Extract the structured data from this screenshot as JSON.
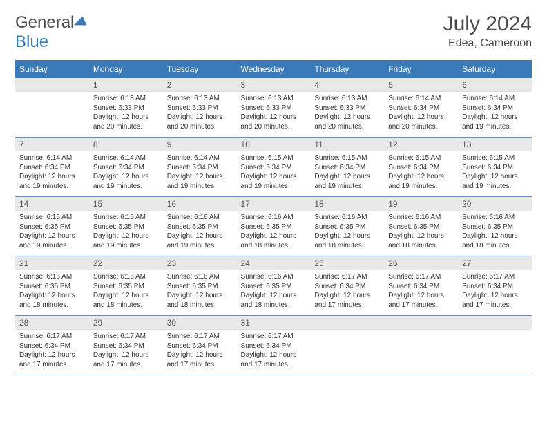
{
  "logo": {
    "text_gray": "General",
    "text_blue": "Blue"
  },
  "title": "July 2024",
  "location": "Edea, Cameroon",
  "colors": {
    "header_bg": "#3a7ab8",
    "header_text": "#ffffff",
    "daynum_bg": "#e8e8e8",
    "border": "#6b8db3",
    "logo_gray": "#4a4a4a",
    "logo_blue": "#3a7ab8"
  },
  "weekdays": [
    "Sunday",
    "Monday",
    "Tuesday",
    "Wednesday",
    "Thursday",
    "Friday",
    "Saturday"
  ],
  "start_offset": 1,
  "days": [
    {
      "n": 1,
      "sr": "6:13 AM",
      "ss": "6:33 PM",
      "dl": "12 hours and 20 minutes."
    },
    {
      "n": 2,
      "sr": "6:13 AM",
      "ss": "6:33 PM",
      "dl": "12 hours and 20 minutes."
    },
    {
      "n": 3,
      "sr": "6:13 AM",
      "ss": "6:33 PM",
      "dl": "12 hours and 20 minutes."
    },
    {
      "n": 4,
      "sr": "6:13 AM",
      "ss": "6:33 PM",
      "dl": "12 hours and 20 minutes."
    },
    {
      "n": 5,
      "sr": "6:14 AM",
      "ss": "6:34 PM",
      "dl": "12 hours and 20 minutes."
    },
    {
      "n": 6,
      "sr": "6:14 AM",
      "ss": "6:34 PM",
      "dl": "12 hours and 19 minutes."
    },
    {
      "n": 7,
      "sr": "6:14 AM",
      "ss": "6:34 PM",
      "dl": "12 hours and 19 minutes."
    },
    {
      "n": 8,
      "sr": "6:14 AM",
      "ss": "6:34 PM",
      "dl": "12 hours and 19 minutes."
    },
    {
      "n": 9,
      "sr": "6:14 AM",
      "ss": "6:34 PM",
      "dl": "12 hours and 19 minutes."
    },
    {
      "n": 10,
      "sr": "6:15 AM",
      "ss": "6:34 PM",
      "dl": "12 hours and 19 minutes."
    },
    {
      "n": 11,
      "sr": "6:15 AM",
      "ss": "6:34 PM",
      "dl": "12 hours and 19 minutes."
    },
    {
      "n": 12,
      "sr": "6:15 AM",
      "ss": "6:34 PM",
      "dl": "12 hours and 19 minutes."
    },
    {
      "n": 13,
      "sr": "6:15 AM",
      "ss": "6:34 PM",
      "dl": "12 hours and 19 minutes."
    },
    {
      "n": 14,
      "sr": "6:15 AM",
      "ss": "6:35 PM",
      "dl": "12 hours and 19 minutes."
    },
    {
      "n": 15,
      "sr": "6:15 AM",
      "ss": "6:35 PM",
      "dl": "12 hours and 19 minutes."
    },
    {
      "n": 16,
      "sr": "6:16 AM",
      "ss": "6:35 PM",
      "dl": "12 hours and 19 minutes."
    },
    {
      "n": 17,
      "sr": "6:16 AM",
      "ss": "6:35 PM",
      "dl": "12 hours and 18 minutes."
    },
    {
      "n": 18,
      "sr": "6:16 AM",
      "ss": "6:35 PM",
      "dl": "12 hours and 18 minutes."
    },
    {
      "n": 19,
      "sr": "6:16 AM",
      "ss": "6:35 PM",
      "dl": "12 hours and 18 minutes."
    },
    {
      "n": 20,
      "sr": "6:16 AM",
      "ss": "6:35 PM",
      "dl": "12 hours and 18 minutes."
    },
    {
      "n": 21,
      "sr": "6:16 AM",
      "ss": "6:35 PM",
      "dl": "12 hours and 18 minutes."
    },
    {
      "n": 22,
      "sr": "6:16 AM",
      "ss": "6:35 PM",
      "dl": "12 hours and 18 minutes."
    },
    {
      "n": 23,
      "sr": "6:16 AM",
      "ss": "6:35 PM",
      "dl": "12 hours and 18 minutes."
    },
    {
      "n": 24,
      "sr": "6:16 AM",
      "ss": "6:35 PM",
      "dl": "12 hours and 18 minutes."
    },
    {
      "n": 25,
      "sr": "6:17 AM",
      "ss": "6:34 PM",
      "dl": "12 hours and 17 minutes."
    },
    {
      "n": 26,
      "sr": "6:17 AM",
      "ss": "6:34 PM",
      "dl": "12 hours and 17 minutes."
    },
    {
      "n": 27,
      "sr": "6:17 AM",
      "ss": "6:34 PM",
      "dl": "12 hours and 17 minutes."
    },
    {
      "n": 28,
      "sr": "6:17 AM",
      "ss": "6:34 PM",
      "dl": "12 hours and 17 minutes."
    },
    {
      "n": 29,
      "sr": "6:17 AM",
      "ss": "6:34 PM",
      "dl": "12 hours and 17 minutes."
    },
    {
      "n": 30,
      "sr": "6:17 AM",
      "ss": "6:34 PM",
      "dl": "12 hours and 17 minutes."
    },
    {
      "n": 31,
      "sr": "6:17 AM",
      "ss": "6:34 PM",
      "dl": "12 hours and 17 minutes."
    }
  ],
  "labels": {
    "sunrise": "Sunrise:",
    "sunset": "Sunset:",
    "daylight": "Daylight:"
  }
}
